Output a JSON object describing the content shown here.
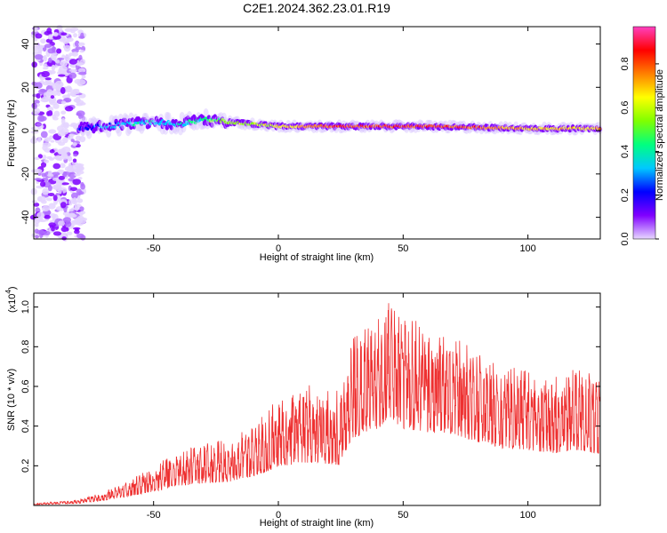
{
  "title": "C2E1.2024.362.23.01.R19",
  "spectrogram": {
    "xlabel": "Height of straight line (km)",
    "ylabel": "Frequency (Hz)",
    "colorbar_label": "Normalized spectral amplitude",
    "xlim": [
      -98,
      129
    ],
    "ylim": [
      -50,
      48
    ],
    "xticks": [
      -50,
      0,
      50,
      100
    ],
    "xtick_labels": [
      "-50",
      "0",
      "50",
      "100"
    ],
    "yticks": [
      40,
      20,
      0,
      -20,
      -40
    ],
    "ytick_labels": [
      "40",
      "20",
      "0",
      "-20",
      "-40"
    ],
    "cbar_ticks": [
      0.0,
      0.2,
      0.4,
      0.6,
      0.8
    ],
    "cbar_tick_labels": [
      "0.0",
      "0.2",
      "0.4",
      "0.6",
      "0.8"
    ],
    "cbar_range": [
      0,
      0.97
    ],
    "colormap": [
      "#e8d8ff",
      "#8000ff",
      "#0000ff",
      "#00c8ff",
      "#00ff80",
      "#80ff00",
      "#ffff00",
      "#ff8000",
      "#ff0000",
      "#ff40c0"
    ]
  },
  "chart_data": [
    {
      "type": "heatmap",
      "title": "C2E1.2024.362.23.01.R19",
      "xlabel": "Height of straight line (km)",
      "ylabel": "Frequency (Hz)",
      "xlim": [
        -98,
        129
      ],
      "ylim": [
        -50,
        48
      ],
      "colorbar_label": "Normalized spectral amplitude",
      "ridge": {
        "description_values": "dominant frequency ridge",
        "x": [
          -80,
          -70,
          -60,
          -50,
          -40,
          -30,
          -20,
          -10,
          0,
          20,
          40,
          60,
          80,
          100,
          120,
          129
        ],
        "freq": [
          1,
          2,
          3,
          4,
          3,
          5,
          4,
          3,
          2,
          2,
          2,
          2,
          1.5,
          1,
          1,
          1
        ],
        "amplitude": [
          0.2,
          0.3,
          0.35,
          0.35,
          0.35,
          0.45,
          0.55,
          0.6,
          0.65,
          0.85,
          0.85,
          0.85,
          0.8,
          0.7,
          0.7,
          0.7
        ]
      }
    },
    {
      "type": "line",
      "xlabel": "Height of straight line (km)",
      "ylabel": "SNR (10 * v/v)",
      "y_multiplier": "(x10^4)",
      "xlim": [
        -98,
        129
      ],
      "ylim": [
        0,
        1.07
      ],
      "xticks": [
        -50,
        0,
        50,
        100
      ],
      "yticks": [
        0.2,
        0.4,
        0.6,
        0.8,
        1.0
      ],
      "envelope_x": [
        -98,
        -80,
        -70,
        -60,
        -50,
        -40,
        -30,
        -20,
        -10,
        0,
        10,
        20,
        25,
        30,
        40,
        45,
        50,
        60,
        70,
        80,
        90,
        100,
        110,
        120,
        129
      ],
      "envelope_y": [
        0.01,
        0.03,
        0.07,
        0.13,
        0.2,
        0.28,
        0.32,
        0.34,
        0.42,
        0.55,
        0.62,
        0.6,
        0.58,
        0.85,
        0.95,
        1.05,
        0.97,
        0.92,
        0.9,
        0.8,
        0.72,
        0.7,
        0.66,
        0.7,
        0.65
      ],
      "color": "#ee3030"
    }
  ],
  "snr_plot": {
    "xlabel": "Height of straight line (km)",
    "ylabel": "SNR (10 * v/v)",
    "multiplier_base": "(x10",
    "multiplier_exp": "4",
    "multiplier_close": ")",
    "xticks": [
      -50,
      0,
      50,
      100
    ],
    "xtick_labels": [
      "-50",
      "0",
      "50",
      "100"
    ],
    "yticks": [
      0.2,
      0.4,
      0.6,
      0.8,
      1.0
    ],
    "ytick_labels": [
      "0.2",
      "0.4",
      "0.6",
      "0.8",
      "1.0"
    ],
    "line_color": "#ee3030"
  }
}
